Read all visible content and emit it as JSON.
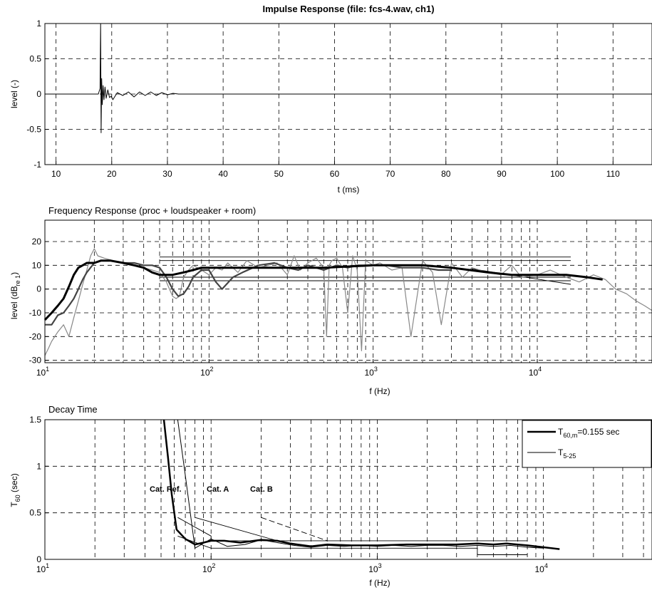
{
  "chart_data": [
    {
      "type": "line",
      "title": "Impulse Response (file: fcs-4.wav, ch1)",
      "xlabel": "t (ms)",
      "ylabel": "level (-)",
      "xlim": [
        8,
        117
      ],
      "ylim": [
        -1,
        1
      ],
      "xticks": [
        "10",
        "20",
        "30",
        "40",
        "50",
        "60",
        "70",
        "80",
        "90",
        "100",
        "110"
      ],
      "yticks": [
        "1",
        "0.5",
        "0",
        "-0.5",
        "-1"
      ],
      "grid": true,
      "series": [
        {
          "color": "#000000",
          "x": [
            8,
            17.6,
            17.9,
            18.0,
            18.1,
            18.2,
            18.3,
            18.45,
            18.6,
            18.8,
            19.0,
            19.3,
            19.6,
            19.9,
            20.2,
            21,
            22,
            23,
            24,
            25,
            26,
            27,
            28,
            29,
            30,
            31,
            32,
            35,
            40,
            50,
            60,
            70,
            80,
            90,
            100,
            110,
            117
          ],
          "y": [
            0,
            0,
            0.08,
            1.0,
            -0.55,
            0.22,
            -0.15,
            0.12,
            -0.08,
            0.1,
            -0.06,
            0.06,
            -0.05,
            -0.03,
            -0.08,
            0.02,
            -0.02,
            0.03,
            -0.04,
            0.03,
            -0.02,
            0.03,
            -0.02,
            0.02,
            -0.01,
            0.01,
            0,
            0,
            0,
            0,
            0,
            0,
            0,
            0,
            0,
            0,
            0
          ]
        }
      ]
    },
    {
      "type": "line",
      "title": "Frequency Response (proc + loudspeaker + room)",
      "xlabel": "f (Hz)",
      "ylabel": "level (dB",
      "ylabel_sub": "re 1",
      "ylabel_end": ")",
      "xscale": "log",
      "xlim": [
        10,
        50000
      ],
      "ylim": [
        -31,
        29
      ],
      "xticks": [
        {
          "base": "10",
          "exp": "1"
        },
        {
          "base": "10",
          "exp": "2"
        },
        {
          "base": "10",
          "exp": "3"
        },
        {
          "base": "10",
          "exp": "4"
        }
      ],
      "yticks": [
        "20",
        "10",
        "0",
        "-10",
        "-20",
        "-30"
      ],
      "grid": true,
      "series": [
        {
          "color": "#888888",
          "width": 1.2,
          "x": [
            10,
            10.5,
            11,
            12,
            13,
            14,
            15,
            16,
            17,
            18,
            19,
            20,
            21,
            23,
            26,
            30,
            35,
            40,
            45,
            50,
            55,
            60,
            63,
            66,
            70,
            75,
            80,
            90,
            100,
            110,
            120,
            130,
            150,
            170,
            200,
            230,
            260,
            300,
            330,
            360,
            400,
            450,
            500,
            520,
            540,
            560,
            600,
            650,
            700,
            750,
            800,
            850,
            900,
            1000,
            1100,
            1300,
            1500,
            1700,
            2000,
            2300,
            2600,
            3000,
            3500,
            4000,
            5000,
            6000,
            7000,
            8000,
            10000,
            12000,
            15000,
            18000,
            22000,
            26000,
            30000,
            35000,
            40000,
            45000,
            50000
          ],
          "y": [
            -28,
            -25,
            -22,
            -18,
            -15,
            -20,
            -12,
            -5,
            2,
            8,
            14,
            17,
            14,
            13,
            12,
            11,
            10,
            9,
            8,
            7,
            3,
            -3,
            -4,
            -3,
            5,
            8,
            10,
            8,
            6,
            9,
            8,
            11,
            7,
            12,
            9,
            10,
            11,
            6,
            14,
            8,
            11,
            13,
            9,
            -20,
            10,
            12,
            13,
            9,
            -10,
            14,
            8,
            -26,
            12,
            10,
            11,
            8,
            9,
            -20,
            12,
            7,
            -15,
            11,
            5,
            9,
            7,
            6,
            10,
            5,
            6,
            8,
            5,
            3,
            6,
            4,
            0,
            -2,
            -5,
            -7,
            -9
          ]
        },
        {
          "color": "#444444",
          "width": 2.2,
          "x": [
            10,
            11,
            12,
            13,
            14,
            15,
            16,
            17,
            18,
            20,
            22,
            25,
            30,
            35,
            40,
            45,
            50,
            55,
            60,
            65,
            70,
            75,
            80,
            90,
            100,
            110,
            120,
            140,
            160,
            200,
            250,
            300,
            350,
            400,
            500,
            600,
            700,
            800,
            1000,
            1200,
            1500,
            2000,
            2500,
            3000
          ],
          "y": [
            -15,
            -15,
            -11,
            -10,
            -7,
            -4,
            0,
            4,
            7,
            11,
            12,
            12,
            11,
            11,
            10,
            10,
            9,
            5,
            0,
            -3,
            -2,
            1,
            5,
            8,
            8,
            3,
            0,
            5,
            7,
            10,
            11,
            9,
            8,
            10,
            8,
            10,
            9,
            10,
            10,
            10,
            9,
            9,
            8,
            8
          ]
        },
        {
          "color": "#000000",
          "width": 3,
          "x": [
            10,
            11,
            12,
            13,
            14,
            15,
            16,
            17,
            18,
            20,
            22,
            25,
            30,
            35,
            40,
            45,
            50,
            55,
            60,
            70,
            80,
            90,
            100,
            120,
            150,
            200,
            300,
            500,
            1000,
            2000,
            3000,
            5000,
            7000,
            10000,
            15000,
            20000,
            25000
          ],
          "y": [
            -13,
            -10,
            -7,
            -4,
            1,
            6,
            9,
            10,
            11,
            11,
            12,
            12,
            11,
            10,
            9,
            7,
            6,
            6,
            6,
            7,
            8,
            9,
            9,
            9,
            9,
            9,
            9,
            9,
            10,
            10,
            9,
            7,
            6,
            6,
            6,
            5,
            4
          ]
        }
      ],
      "tolerance_lines": [
        {
          "x1": 50,
          "x2": 16000,
          "y": 13.5
        },
        {
          "x1": 50,
          "x2": 16000,
          "y": 3.5
        },
        {
          "x1": 50,
          "x2": 16000,
          "y": 12
        },
        {
          "x1": 50,
          "x2": 16000,
          "y": 5
        },
        {
          "x1": 4000,
          "x2": 16000,
          "y1": 8.5,
          "y2": 2
        }
      ]
    },
    {
      "type": "line",
      "title": "Decay Time",
      "xlabel": "f (Hz)",
      "ylabel": "T",
      "ylabel_sub": "60",
      "ylabel_end": " (sec)",
      "xscale": "log",
      "xlim": [
        10,
        45000
      ],
      "ylim": [
        0,
        1.5
      ],
      "xticks": [
        {
          "base": "10",
          "exp": "1"
        },
        {
          "base": "10",
          "exp": "2"
        },
        {
          "base": "10",
          "exp": "3"
        },
        {
          "base": "10",
          "exp": "4"
        }
      ],
      "yticks": [
        "1.5",
        "1",
        "0.5",
        "0"
      ],
      "grid": true,
      "series": [
        {
          "name": "T",
          "name_sub": "60,m",
          "name_suffix": "=0.155 sec",
          "color": "#000000",
          "width": 2.5,
          "x": [
            52,
            55,
            58,
            62,
            70,
            80,
            90,
            100,
            120,
            150,
            200,
            250,
            300,
            400,
            500,
            700,
            1000,
            1500,
            2000,
            3000,
            4000,
            5000,
            6000,
            8000,
            10000,
            12500
          ],
          "y": [
            1.5,
            1.1,
            0.7,
            0.32,
            0.22,
            0.16,
            0.18,
            0.2,
            0.2,
            0.18,
            0.21,
            0.2,
            0.17,
            0.14,
            0.16,
            0.15,
            0.15,
            0.16,
            0.16,
            0.16,
            0.17,
            0.16,
            0.17,
            0.15,
            0.13,
            0.11
          ]
        },
        {
          "name": "T",
          "name_sub": "5-25",
          "name_suffix": "",
          "color": "#000000",
          "width": 1,
          "x": [
            63,
            70,
            80,
            100,
            125,
            160,
            200,
            250,
            315,
            400,
            500,
            630,
            800,
            1000,
            1250,
            1600,
            2000,
            2500,
            3150,
            4000,
            5000,
            6300,
            8000,
            10000
          ],
          "y": [
            1.5,
            0.9,
            0.12,
            0.22,
            0.14,
            0.16,
            0.21,
            0.18,
            0.15,
            0.13,
            0.15,
            0.14,
            0.15,
            0.14,
            0.15,
            0.14,
            0.15,
            0.15,
            0.14,
            0.15,
            0.14,
            0.15,
            0.13,
            0.12
          ]
        }
      ],
      "annotations": [
        "Cat. Ref.",
        "Cat. A",
        "Cat. B"
      ]
    }
  ]
}
